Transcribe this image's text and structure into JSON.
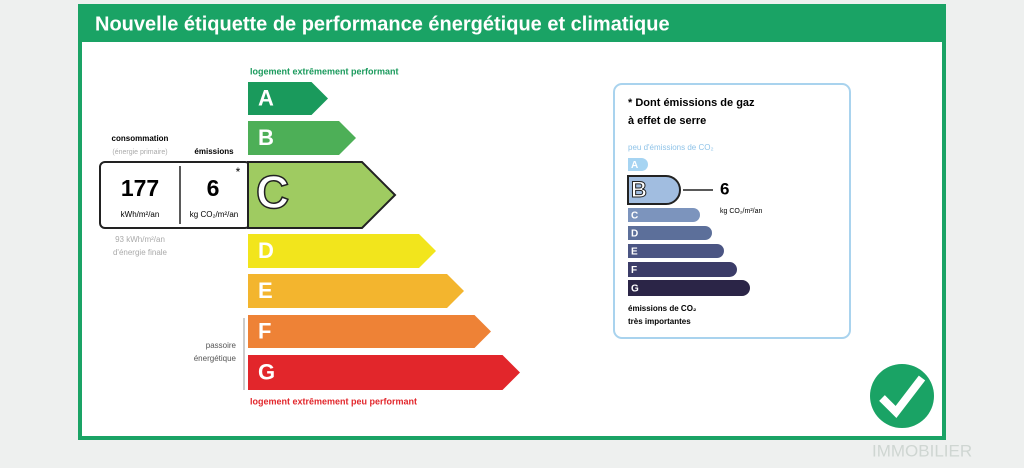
{
  "title": "Nouvelle étiquette de performance énergétique et climatique",
  "energy_scale": {
    "top_label": "logement extrêmement performant",
    "bottom_label": "logement extrêmement peu performant",
    "current": "C",
    "classes": [
      {
        "letter": "A",
        "color": "#1a9a5c"
      },
      {
        "letter": "B",
        "color": "#4daf57"
      },
      {
        "letter": "C",
        "color": "#9fcb61"
      },
      {
        "letter": "D",
        "color": "#f2e51c"
      },
      {
        "letter": "E",
        "color": "#f3b52e"
      },
      {
        "letter": "F",
        "color": "#ee8236"
      },
      {
        "letter": "G",
        "color": "#e2262b"
      }
    ]
  },
  "consumption": {
    "label": "consommation",
    "sublabel": "(énergie primaire)",
    "value": 177,
    "unit": "kWh/m²/an",
    "final_energy": "93 kWh/m²/an",
    "final_energy_label": "d'énergie finale"
  },
  "emissions": {
    "label": "émissions",
    "value": 6,
    "unit": "kg CO₂/m²/an",
    "asterisk": "*"
  },
  "passoire": [
    "passoire",
    "énergétique"
  ],
  "ghg": {
    "title_lines": [
      "* Dont émissions de gaz",
      "à effet de serre"
    ],
    "top_label": "peu d'émissions de CO₂",
    "current": "B",
    "value": 6,
    "unit": "kg CO₂/m²/an",
    "bottom_lines": [
      "émissions de CO₂",
      "très importantes"
    ],
    "classes": [
      {
        "letter": "A",
        "color": "#a6d4f2"
      },
      {
        "letter": "B",
        "color": "#a1bde0"
      },
      {
        "letter": "C",
        "color": "#7c94bd"
      },
      {
        "letter": "D",
        "color": "#5c6f9a"
      },
      {
        "letter": "E",
        "color": "#4b5583"
      },
      {
        "letter": "F",
        "color": "#3b3c68"
      },
      {
        "letter": "G",
        "color": "#2b2547"
      }
    ]
  },
  "watermark": "IMMOBILIER"
}
